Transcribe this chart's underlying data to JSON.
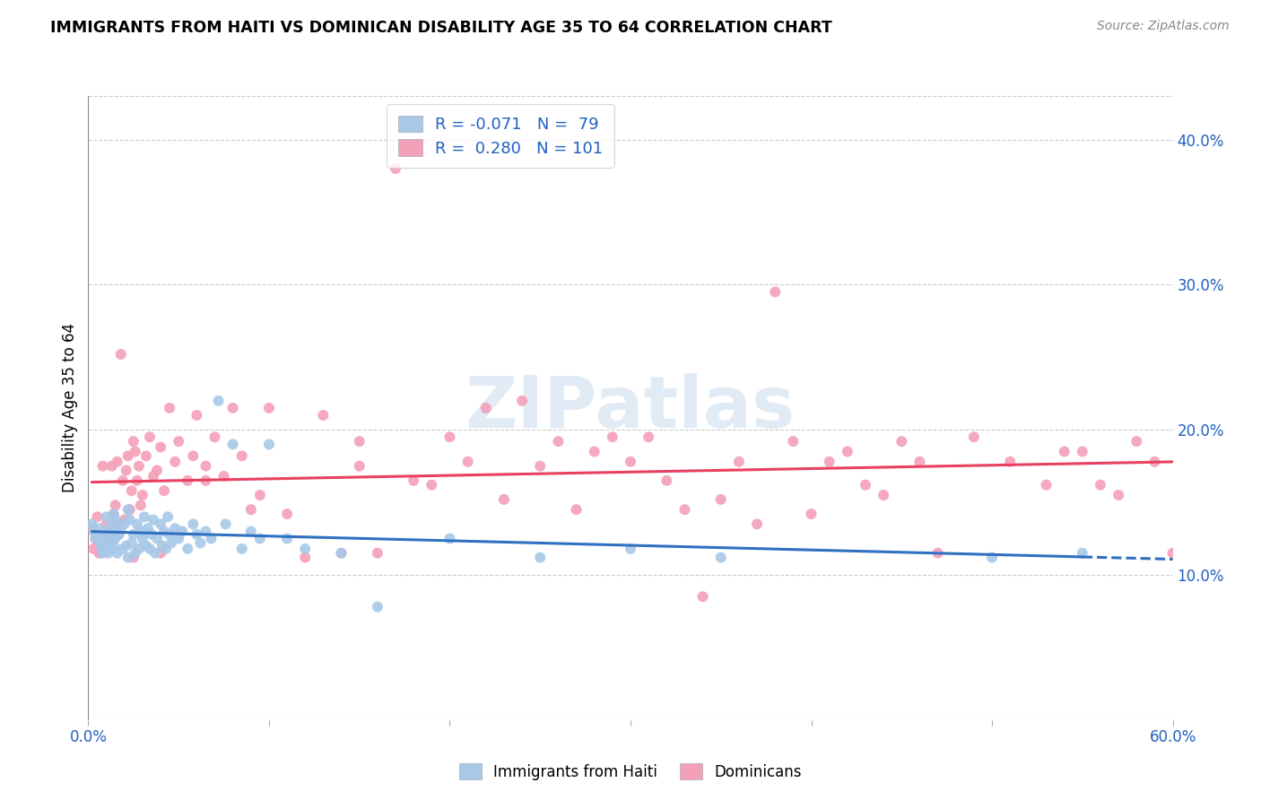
{
  "title": "IMMIGRANTS FROM HAITI VS DOMINICAN DISABILITY AGE 35 TO 64 CORRELATION CHART",
  "source": "Source: ZipAtlas.com",
  "ylabel": "Disability Age 35 to 64",
  "xlim": [
    0.0,
    0.6
  ],
  "ylim": [
    0.0,
    0.43
  ],
  "xtick_labels": [
    "0.0%",
    "",
    "",
    "",
    "",
    "",
    "60.0%"
  ],
  "xtick_vals": [
    0.0,
    0.1,
    0.2,
    0.3,
    0.4,
    0.5,
    0.6
  ],
  "ytick_labels": [
    "10.0%",
    "20.0%",
    "30.0%",
    "40.0%"
  ],
  "ytick_vals": [
    0.1,
    0.2,
    0.3,
    0.4
  ],
  "haiti_R": -0.071,
  "haiti_N": 79,
  "dominican_R": 0.28,
  "dominican_N": 101,
  "haiti_color": "#a8c8e8",
  "dominican_color": "#f4a0b8",
  "haiti_line_color": "#3070c0",
  "dominican_line_color": "#e84060",
  "legend_text_color": "#2060c0",
  "watermark": "ZIPatlas",
  "background_color": "#ffffff",
  "haiti_x": [
    0.002,
    0.003,
    0.004,
    0.005,
    0.006,
    0.007,
    0.008,
    0.008,
    0.009,
    0.01,
    0.01,
    0.011,
    0.011,
    0.012,
    0.012,
    0.013,
    0.013,
    0.014,
    0.014,
    0.015,
    0.015,
    0.016,
    0.016,
    0.017,
    0.018,
    0.019,
    0.02,
    0.021,
    0.022,
    0.022,
    0.023,
    0.024,
    0.025,
    0.026,
    0.027,
    0.028,
    0.029,
    0.03,
    0.031,
    0.032,
    0.033,
    0.034,
    0.035,
    0.036,
    0.037,
    0.038,
    0.04,
    0.041,
    0.042,
    0.043,
    0.044,
    0.045,
    0.046,
    0.048,
    0.05,
    0.052,
    0.055,
    0.058,
    0.06,
    0.062,
    0.065,
    0.068,
    0.072,
    0.076,
    0.08,
    0.085,
    0.09,
    0.095,
    0.1,
    0.11,
    0.12,
    0.14,
    0.16,
    0.2,
    0.25,
    0.3,
    0.35,
    0.5,
    0.55
  ],
  "haiti_y": [
    0.135,
    0.13,
    0.125,
    0.128,
    0.132,
    0.12,
    0.115,
    0.118,
    0.122,
    0.14,
    0.125,
    0.115,
    0.128,
    0.132,
    0.118,
    0.135,
    0.125,
    0.142,
    0.12,
    0.138,
    0.125,
    0.13,
    0.115,
    0.128,
    0.132,
    0.118,
    0.135,
    0.12,
    0.145,
    0.112,
    0.138,
    0.122,
    0.128,
    0.115,
    0.135,
    0.118,
    0.13,
    0.125,
    0.14,
    0.12,
    0.132,
    0.118,
    0.128,
    0.138,
    0.115,
    0.125,
    0.135,
    0.12,
    0.13,
    0.118,
    0.14,
    0.128,
    0.122,
    0.132,
    0.125,
    0.13,
    0.118,
    0.135,
    0.128,
    0.122,
    0.13,
    0.125,
    0.22,
    0.135,
    0.19,
    0.118,
    0.13,
    0.125,
    0.19,
    0.125,
    0.118,
    0.115,
    0.078,
    0.125,
    0.112,
    0.118,
    0.112,
    0.112,
    0.115
  ],
  "dominican_x": [
    0.002,
    0.003,
    0.004,
    0.005,
    0.006,
    0.007,
    0.008,
    0.009,
    0.01,
    0.011,
    0.012,
    0.013,
    0.014,
    0.015,
    0.016,
    0.017,
    0.018,
    0.019,
    0.02,
    0.021,
    0.022,
    0.023,
    0.024,
    0.025,
    0.026,
    0.027,
    0.028,
    0.029,
    0.03,
    0.032,
    0.034,
    0.036,
    0.038,
    0.04,
    0.042,
    0.045,
    0.048,
    0.05,
    0.055,
    0.058,
    0.06,
    0.065,
    0.07,
    0.075,
    0.08,
    0.085,
    0.09,
    0.095,
    0.1,
    0.11,
    0.12,
    0.13,
    0.14,
    0.15,
    0.16,
    0.17,
    0.18,
    0.19,
    0.2,
    0.21,
    0.22,
    0.23,
    0.24,
    0.25,
    0.26,
    0.27,
    0.28,
    0.29,
    0.3,
    0.31,
    0.32,
    0.33,
    0.34,
    0.35,
    0.36,
    0.37,
    0.38,
    0.39,
    0.4,
    0.41,
    0.42,
    0.43,
    0.44,
    0.45,
    0.46,
    0.47,
    0.49,
    0.51,
    0.53,
    0.54,
    0.55,
    0.56,
    0.57,
    0.58,
    0.59,
    0.6,
    0.15,
    0.065,
    0.04,
    0.025,
    0.015
  ],
  "dominican_y": [
    0.132,
    0.118,
    0.125,
    0.14,
    0.115,
    0.128,
    0.175,
    0.122,
    0.135,
    0.128,
    0.12,
    0.175,
    0.142,
    0.135,
    0.178,
    0.128,
    0.252,
    0.165,
    0.138,
    0.172,
    0.182,
    0.145,
    0.158,
    0.192,
    0.185,
    0.165,
    0.175,
    0.148,
    0.155,
    0.182,
    0.195,
    0.168,
    0.172,
    0.188,
    0.158,
    0.215,
    0.178,
    0.192,
    0.165,
    0.182,
    0.21,
    0.175,
    0.195,
    0.168,
    0.215,
    0.182,
    0.145,
    0.155,
    0.215,
    0.142,
    0.112,
    0.21,
    0.115,
    0.192,
    0.115,
    0.38,
    0.165,
    0.162,
    0.195,
    0.178,
    0.215,
    0.152,
    0.22,
    0.175,
    0.192,
    0.145,
    0.185,
    0.195,
    0.178,
    0.195,
    0.165,
    0.145,
    0.085,
    0.152,
    0.178,
    0.135,
    0.295,
    0.192,
    0.142,
    0.178,
    0.185,
    0.162,
    0.155,
    0.192,
    0.178,
    0.115,
    0.195,
    0.178,
    0.162,
    0.185,
    0.185,
    0.162,
    0.155,
    0.192,
    0.178,
    0.115,
    0.175,
    0.165,
    0.115,
    0.112,
    0.148
  ]
}
